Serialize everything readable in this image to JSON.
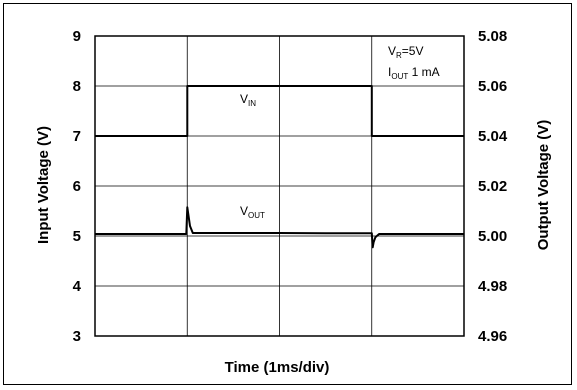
{
  "chart_data": {
    "type": "line",
    "title": "",
    "xlabel": "Time (1ms/div)",
    "ylabel_left": "Input Voltage (V)",
    "ylabel_right": "Output Voltage (V)",
    "x_divisions": 4,
    "ylim_left": [
      3,
      9
    ],
    "ylim_right": [
      4.96,
      5.08
    ],
    "yticks_left": [
      "3",
      "4",
      "5",
      "6",
      "7",
      "8",
      "9"
    ],
    "yticks_right": [
      "4.96",
      "4.98",
      "5.00",
      "5.02",
      "5.04",
      "5.06",
      "5.08"
    ],
    "grid": true,
    "annotations": {
      "condition1": {
        "main": "V",
        "sub": "R",
        "rest": "=5V"
      },
      "condition2": {
        "main": "I",
        "sub": "OUT",
        "rest": " 1 mA"
      },
      "vin_label": {
        "main": "V",
        "sub": "IN"
      },
      "vout_label": {
        "main": "V",
        "sub": "OUT"
      }
    },
    "series": [
      {
        "name": "VIN",
        "axis": "left",
        "x": [
          0,
          1.0,
          1.0,
          3.0,
          3.0,
          4.0
        ],
        "y": [
          7.0,
          7.0,
          8.0,
          8.0,
          7.0,
          7.0
        ]
      },
      {
        "name": "VOUT",
        "axis": "right",
        "x": [
          0,
          0.99,
          1.0,
          1.03,
          1.06,
          1.5,
          2.0,
          2.5,
          3.0,
          3.01,
          3.02,
          3.04,
          3.08,
          3.5,
          4.0
        ],
        "y": [
          5.0008,
          5.0008,
          5.0115,
          5.004,
          5.0012,
          5.0012,
          5.0012,
          5.0011,
          5.0011,
          4.9955,
          4.9975,
          4.9995,
          5.0008,
          5.0008,
          5.0008
        ]
      }
    ]
  }
}
